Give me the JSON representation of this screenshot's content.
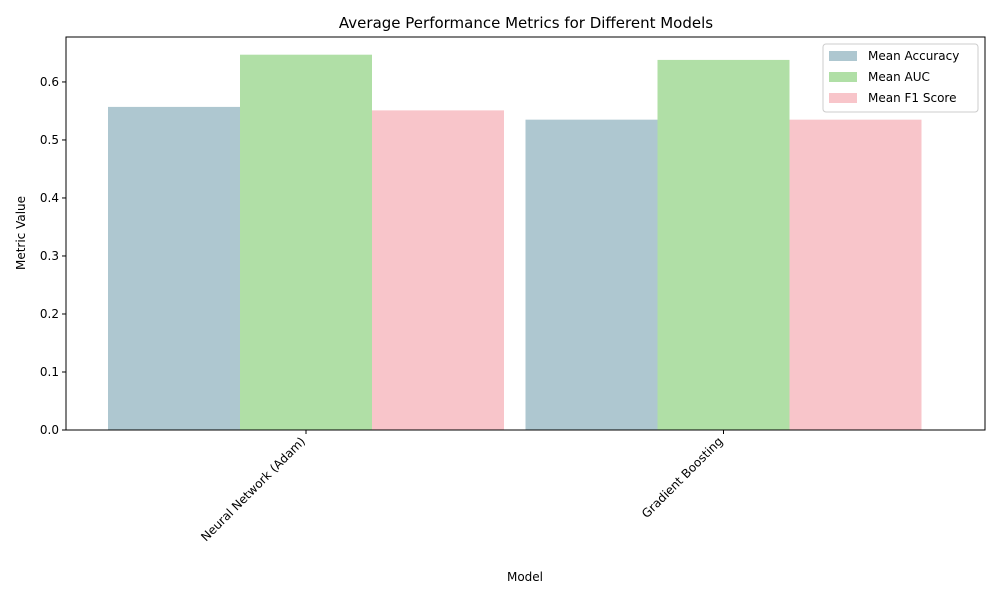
{
  "chart_data": {
    "type": "bar",
    "title": "Average Performance Metrics for Different Models",
    "xlabel": "Model",
    "ylabel": "Metric Value",
    "categories": [
      "Neural Network (Adam)",
      "Gradient Boosting"
    ],
    "series": [
      {
        "name": "Mean Accuracy",
        "values": [
          0.557,
          0.535
        ],
        "color": "#aec7d0"
      },
      {
        "name": "Mean AUC",
        "values": [
          0.647,
          0.638
        ],
        "color": "#b0dfa6"
      },
      {
        "name": "Mean F1 Score",
        "values": [
          0.551,
          0.535
        ],
        "color": "#f8c5ca"
      }
    ],
    "ylim": [
      0,
      0.6775
    ],
    "yticks": [
      0.0,
      0.1,
      0.2,
      0.3,
      0.4,
      0.5,
      0.6
    ],
    "ytick_labels": [
      "0.0",
      "0.1",
      "0.2",
      "0.3",
      "0.4",
      "0.5",
      "0.6"
    ],
    "xtick_rotation_deg": 45,
    "grid": false,
    "legend_position": "top-right"
  }
}
